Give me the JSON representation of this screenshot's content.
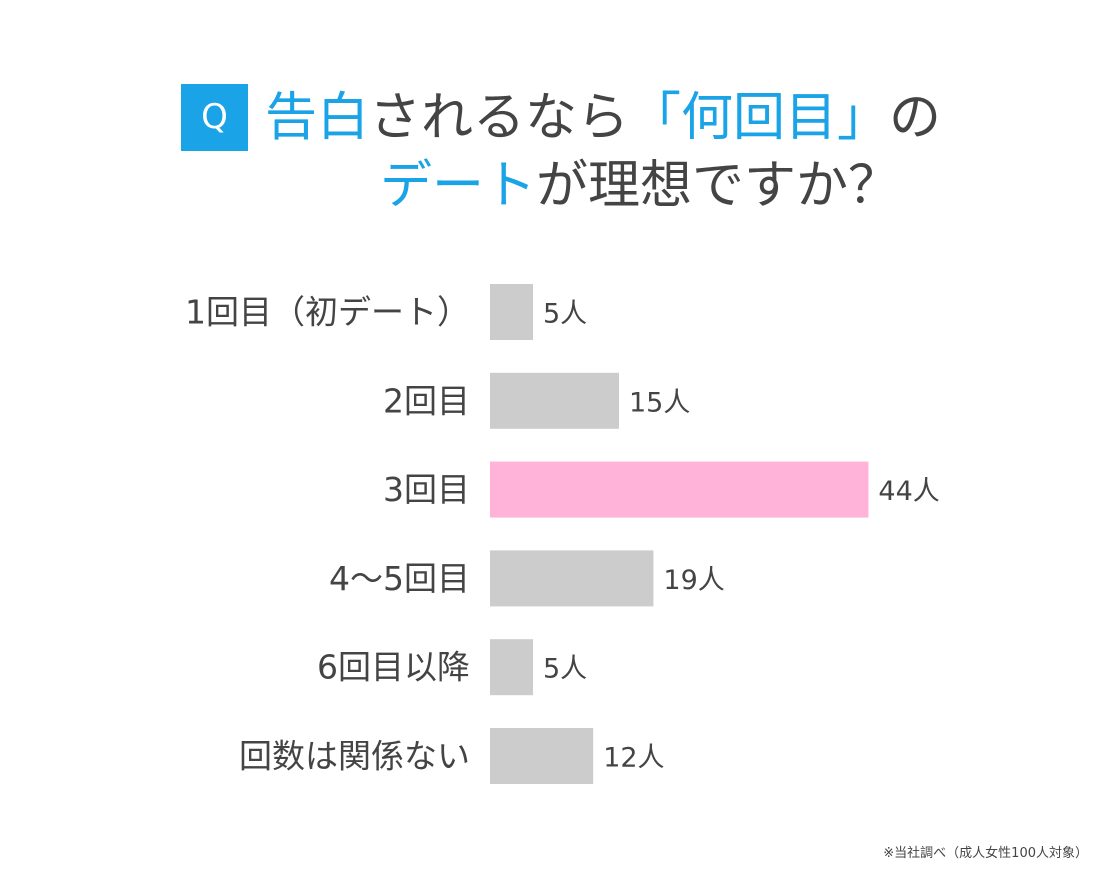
{
  "question": {
    "badge": "Q",
    "line1_accent_a": "告白",
    "line1_plain_a": "されるなら",
    "line1_accent_b": "「何回目」",
    "line1_plain_b": "の",
    "line2_accent": "デート",
    "line2_plain": "が理想ですか？"
  },
  "colors": {
    "accent": "#1aa3e6",
    "bar_default": "#cccccc",
    "bar_highlight": "#ffb3d9",
    "text": "#444444"
  },
  "chart_data": {
    "type": "bar",
    "orientation": "horizontal",
    "categories": [
      "1回目（初デート）",
      "2回目",
      "3回目",
      "4～5回目",
      "6回目以降",
      "回数は関係ない"
    ],
    "values": [
      5,
      15,
      44,
      19,
      5,
      12
    ],
    "value_labels": [
      "5人",
      "15人",
      "44人",
      "19人",
      "5人",
      "12人"
    ],
    "highlight_index": 2,
    "grid": false
  },
  "footnote": "※当社調べ（成人女性100人対象）"
}
